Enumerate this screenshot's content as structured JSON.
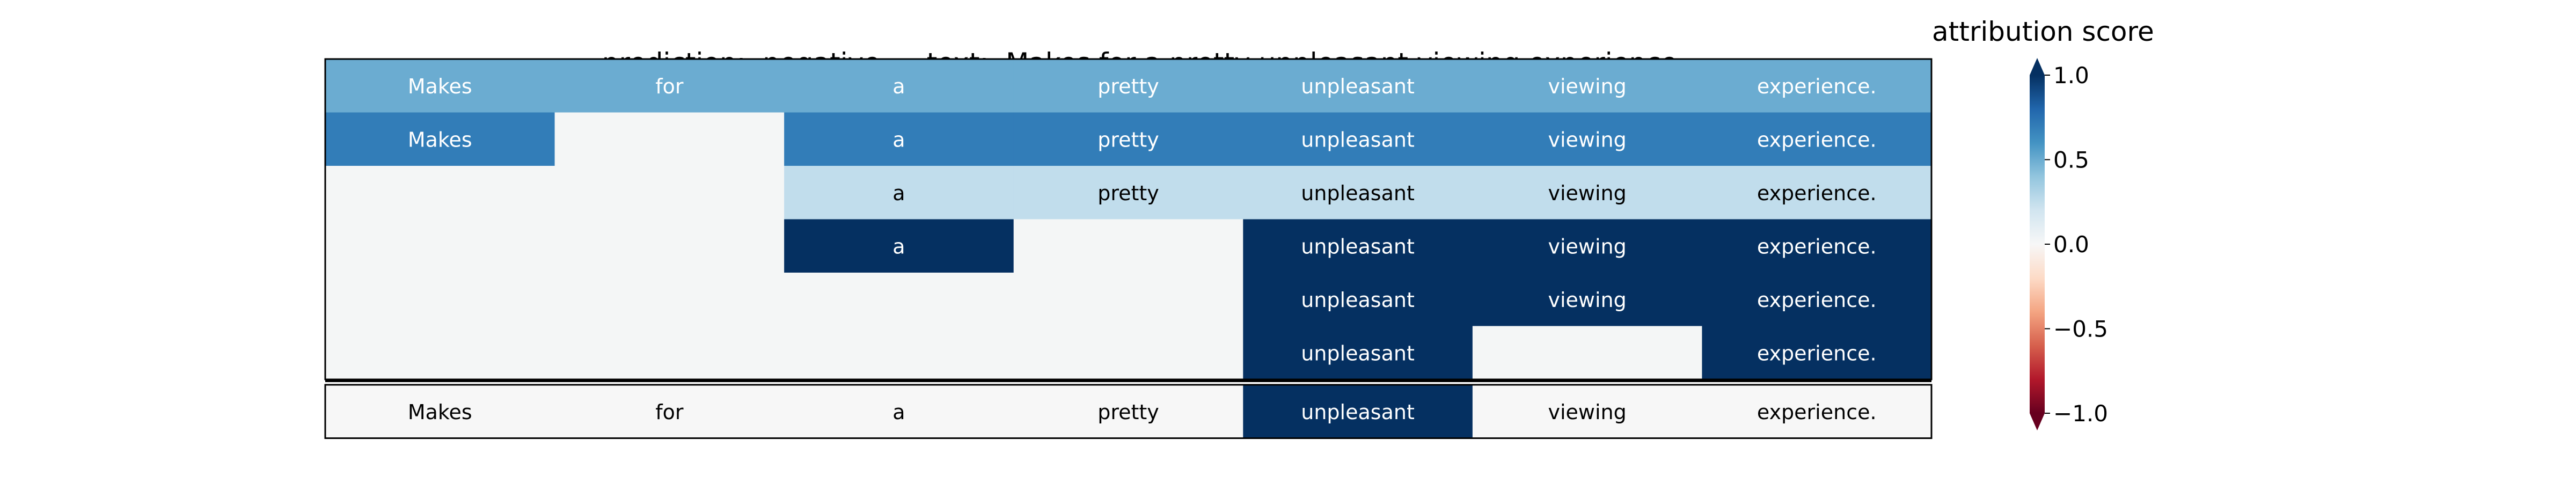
{
  "header": {
    "prediction_label": "prediction:",
    "prediction_value": "negative",
    "text_label": "text:",
    "text_value": "Makes for a pretty unpleasant viewing experience.",
    "colorbar_title": "attribution score"
  },
  "colors": {
    "scale": [
      "#67001f",
      "#b2182b",
      "#d6604d",
      "#f4a582",
      "#fddbc7",
      "#f7f7f7",
      "#d1e5f0",
      "#92c5de",
      "#4393c3",
      "#2166ac",
      "#053061"
    ],
    "empty_cell": "#f4f6f6",
    "dark_text": "#000000",
    "light_text": "#ffffff"
  },
  "chart_data": {
    "type": "heatmap",
    "tokens": [
      "Makes",
      "for",
      "a",
      "pretty",
      "unpleasant",
      "viewing",
      "experience."
    ],
    "rows": [
      [
        0.5,
        0.5,
        0.5,
        0.5,
        0.5,
        0.5,
        0.5
      ],
      [
        0.7,
        null,
        0.7,
        0.7,
        0.7,
        0.7,
        0.7
      ],
      [
        null,
        null,
        0.25,
        0.25,
        0.25,
        0.25,
        0.25
      ],
      [
        null,
        null,
        1.0,
        null,
        1.0,
        1.0,
        1.0
      ],
      [
        null,
        null,
        null,
        null,
        1.0,
        1.0,
        1.0
      ],
      [
        null,
        null,
        null,
        null,
        1.0,
        null,
        1.0
      ]
    ],
    "final_row": [
      0,
      0,
      0,
      0,
      1.0,
      0,
      0
    ],
    "colorbar": {
      "range": [
        -1.0,
        1.0
      ],
      "ticks": [
        1.0,
        0.5,
        0.0,
        -0.5,
        -1.0
      ],
      "tick_labels": [
        "1.0",
        "0.5",
        "0.0",
        "−0.5",
        "−1.0"
      ],
      "extend": "both"
    }
  }
}
